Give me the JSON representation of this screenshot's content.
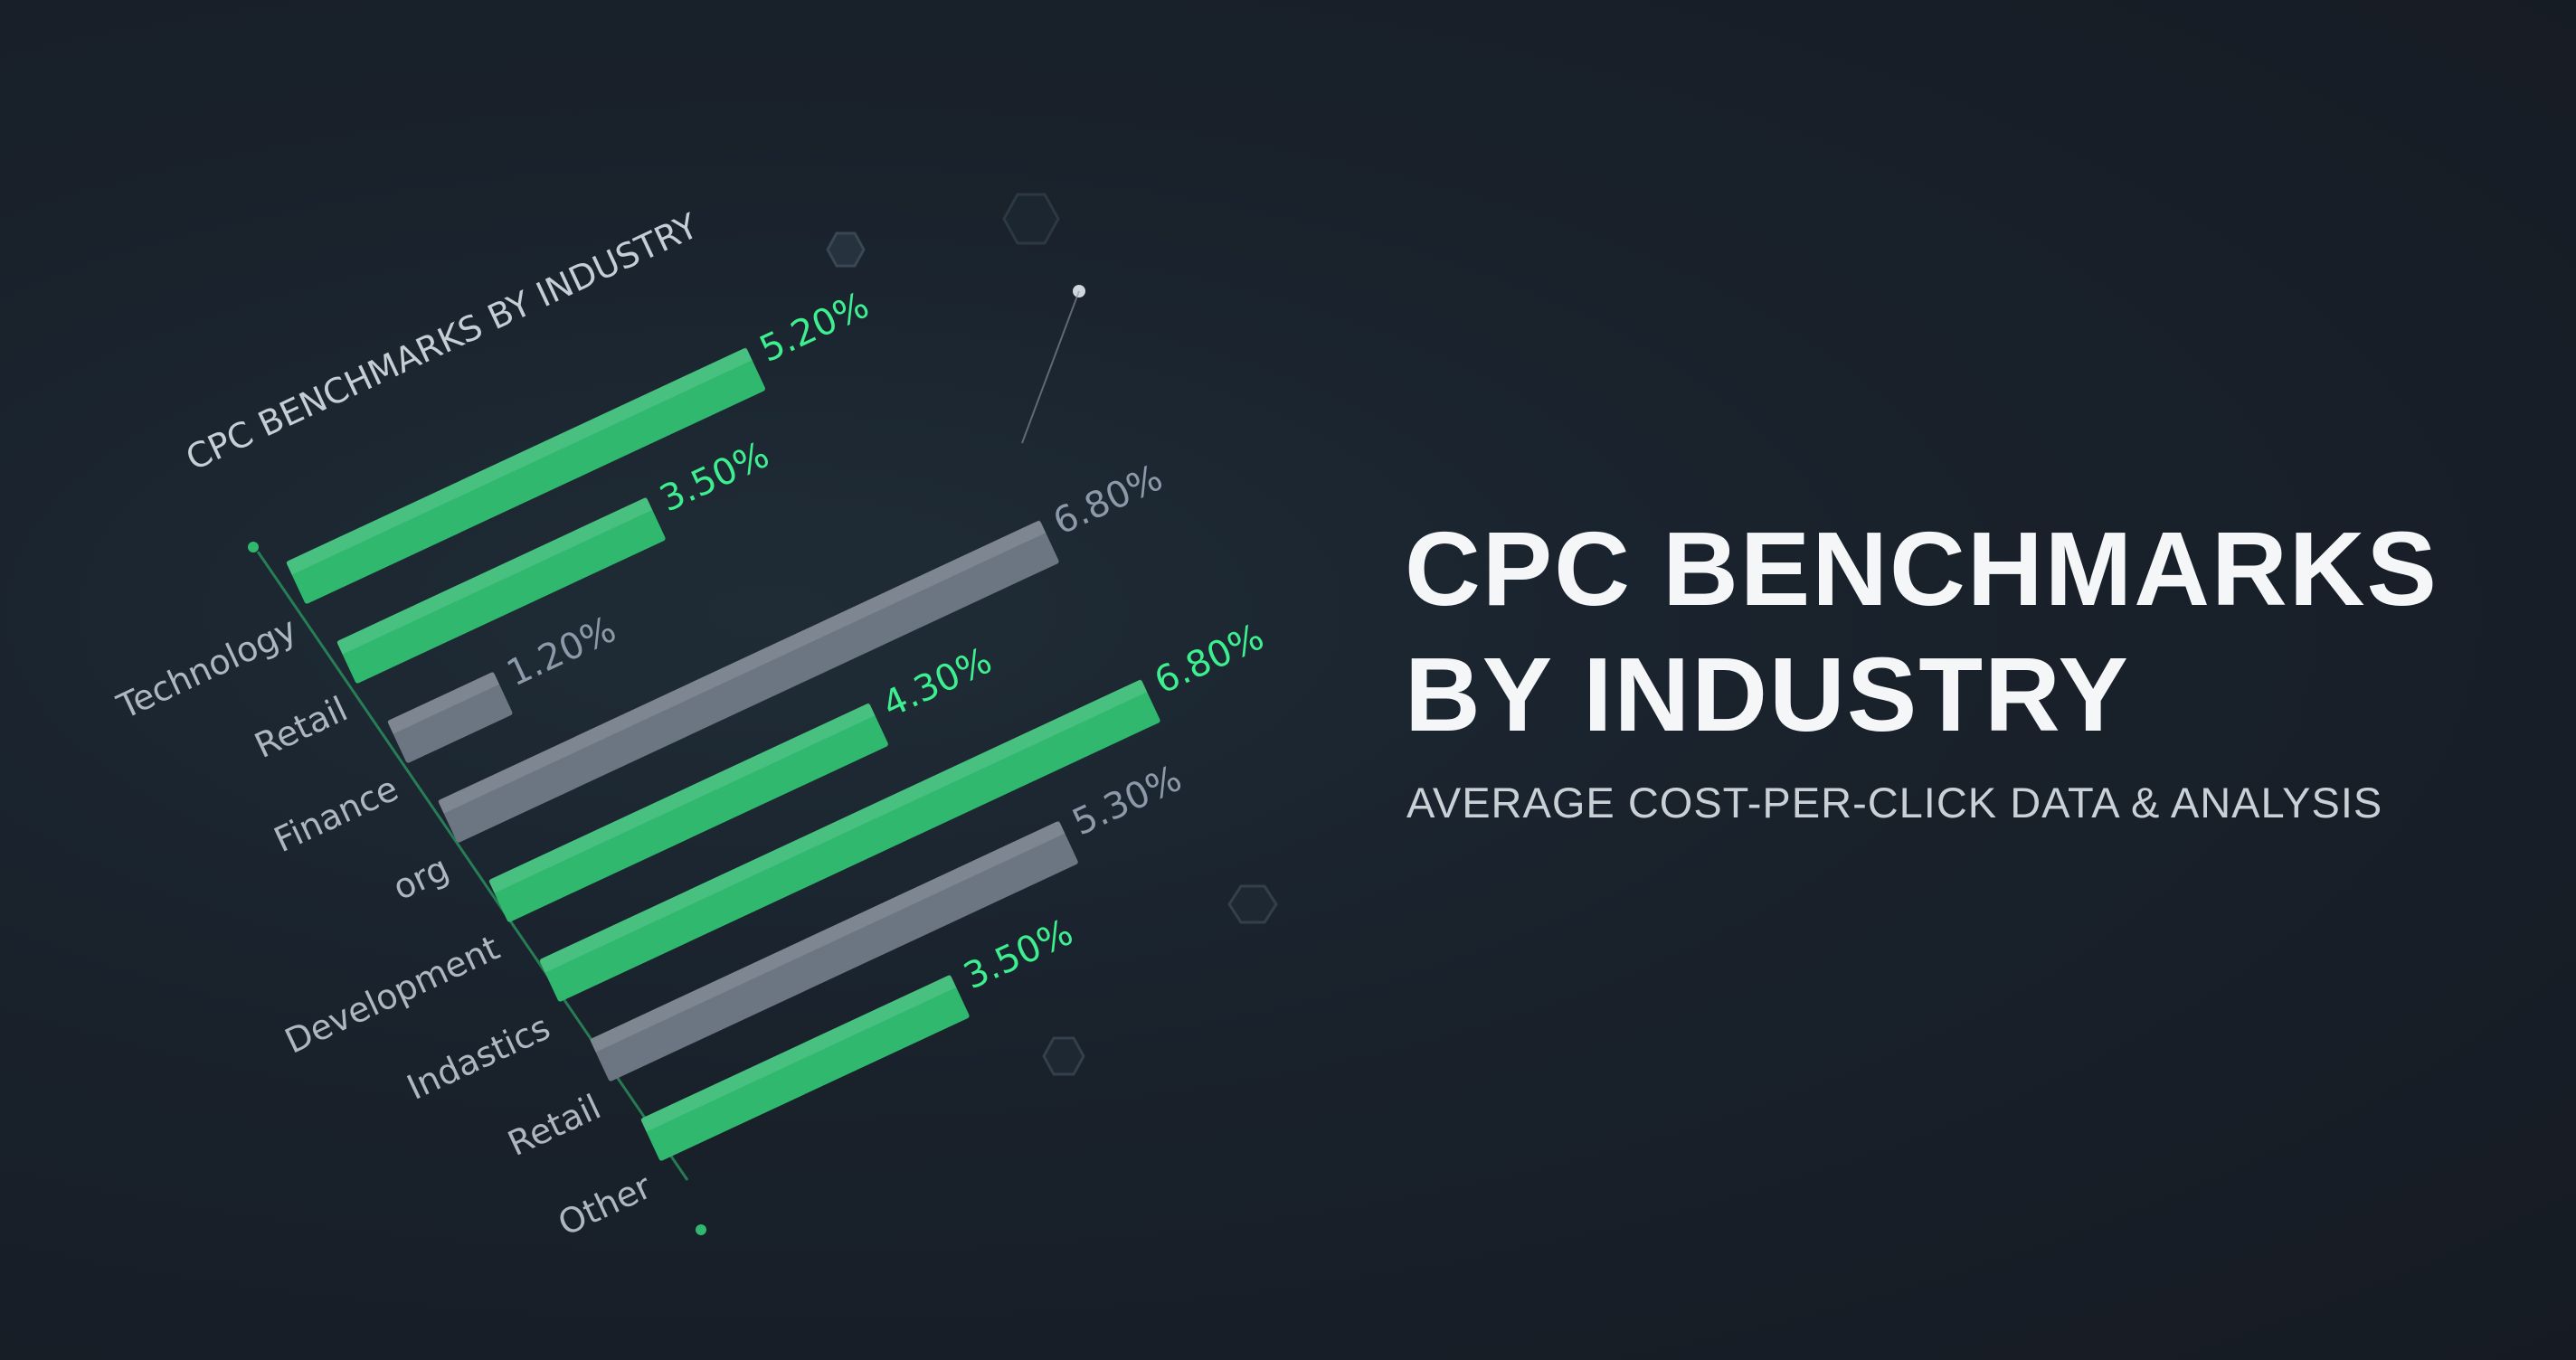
{
  "chart_data": {
    "type": "bar",
    "title": "CPC BENCHMARKS BY INDUSTRY",
    "categories": [
      "Technology",
      "Retail",
      "Finance",
      "org",
      "Development",
      "Indastics",
      "Retail",
      "Other"
    ],
    "values": [
      5.2,
      3.5,
      1.2,
      6.8,
      4.3,
      6.8,
      5.3,
      3.5
    ],
    "value_labels": [
      "5.20%",
      "3.50%",
      "1.20%",
      "6.80%",
      "4.30%",
      "6.80%",
      "5.30%",
      "3.50%"
    ],
    "colors": [
      "#2fb86e",
      "#2fb86e",
      "#6b7682",
      "#6b7682",
      "#2fb86e",
      "#2fb86e",
      "#6b7682",
      "#2fb86e"
    ]
  },
  "heading": "CPC BENCHMARKS BY INDUSTRY",
  "subtitle": "AVERAGE COST-PER-CLICK DATA & ANALYSIS"
}
